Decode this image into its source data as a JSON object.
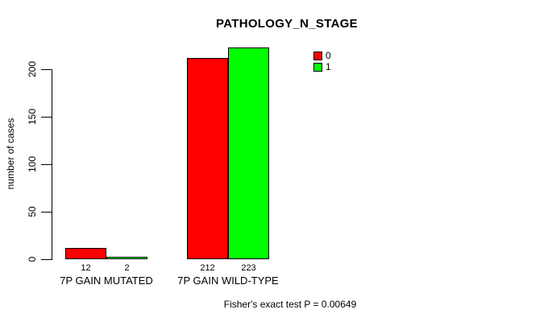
{
  "title": "PATHOLOGY_N_STAGE",
  "footer": "Fisher's exact test P = 0.00649",
  "colors": {
    "series0": "#ff0000",
    "series1": "#00ff00",
    "axis": "#000000",
    "background": "#ffffff"
  },
  "chart_data": {
    "type": "bar",
    "title": "PATHOLOGY_N_STAGE",
    "categories": [
      "7P GAIN MUTATED",
      "7P GAIN WILD-TYPE"
    ],
    "series": [
      {
        "name": "0",
        "color": "#ff0000",
        "values": [
          12,
          212
        ]
      },
      {
        "name": "1",
        "color": "#00ff00",
        "values": [
          2,
          223
        ]
      }
    ],
    "bar_value_labels": [
      [
        "12",
        "2"
      ],
      [
        "212",
        "223"
      ]
    ],
    "xlabel": "",
    "ylabel": "number of cases",
    "yticks": [
      0,
      50,
      100,
      150,
      200
    ],
    "ylim": [
      0,
      235
    ],
    "grid": false,
    "legend_position": "top-right",
    "annotation": "Fisher's exact test P = 0.00649"
  }
}
